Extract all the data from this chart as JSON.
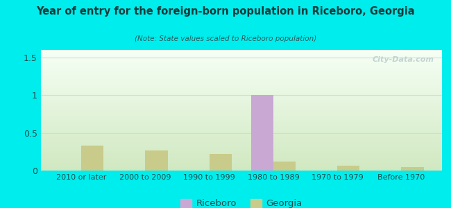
{
  "title": "Year of entry for the foreign-born population in Riceboro, Georgia",
  "subtitle": "(Note: State values scaled to Riceboro population)",
  "categories": [
    "2010 or later",
    "2000 to 2009",
    "1990 to 1999",
    "1980 to 1989",
    "1970 to 1979",
    "Before 1970"
  ],
  "riceboro_values": [
    0.0,
    0.0,
    0.0,
    1.0,
    0.0,
    0.0
  ],
  "georgia_values": [
    0.33,
    0.27,
    0.22,
    0.12,
    0.06,
    0.05
  ],
  "riceboro_color": "#c9a8d4",
  "georgia_color": "#c8cb8a",
  "background_color": "#00eded",
  "plot_bg_top": "#f5fff5",
  "plot_bg_bottom": "#d0e8c0",
  "title_color": "#1a3a3a",
  "subtitle_color": "#2a6060",
  "tick_color": "#1a5050",
  "ylim": [
    0,
    1.6
  ],
  "yticks": [
    0,
    0.5,
    1,
    1.5
  ],
  "bar_width": 0.35,
  "watermark": "City-Data.com"
}
